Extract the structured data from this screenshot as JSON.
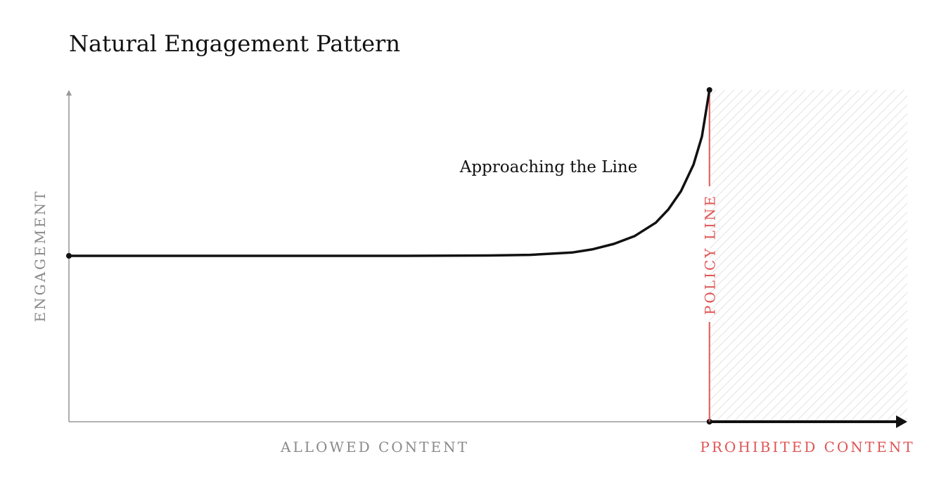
{
  "chart_data": {
    "type": "line",
    "title": "Natural Engagement Pattern",
    "ylabel": "ENGAGEMENT",
    "xlabel_left": "ALLOWED CONTENT",
    "xlabel_right": "PROHIBITED CONTENT",
    "annotation": "Approaching the Line",
    "policy_label": "POLICY LINE",
    "policy_x": 0.764,
    "xlim": [
      0,
      1
    ],
    "ylim": [
      0,
      1
    ],
    "grid": false,
    "series": [
      {
        "x": [
          0,
          0.1,
          0.2,
          0.3,
          0.4,
          0.5,
          0.55,
          0.6,
          0.625,
          0.65,
          0.675,
          0.7,
          0.715,
          0.73,
          0.745,
          0.755,
          0.764
        ],
        "y": [
          0.5,
          0.5,
          0.5,
          0.5,
          0.5,
          0.501,
          0.503,
          0.51,
          0.52,
          0.536,
          0.56,
          0.6,
          0.64,
          0.695,
          0.775,
          0.86,
          1.0
        ]
      }
    ],
    "colors": {
      "line": "#111111",
      "axis": "#999999",
      "policy": "#e05555",
      "muted_text": "#8a8a8a",
      "hatch": "#d9d9d9"
    }
  }
}
